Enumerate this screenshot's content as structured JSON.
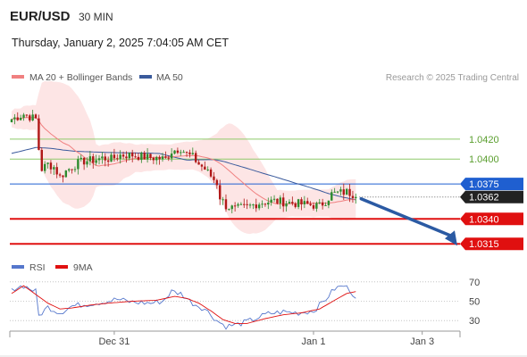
{
  "header": {
    "symbol": "EUR/USD",
    "timeframe": "30 MIN",
    "datetime": "Thursday, January 2, 2025 7:04:05 AM CET",
    "credit": "Research © 2025 Trading Central"
  },
  "legend": {
    "ma20": "MA 20 + Bollinger Bands",
    "ma50": "MA 50",
    "rsi": "RSI",
    "ma9": "9MA"
  },
  "colors": {
    "up_candle": "#2e8b2e",
    "down_candle": "#b01818",
    "ma20": "#f08080",
    "ma50": "#3a5a9c",
    "bollinger_fill": "#fde1e1",
    "green_level": "#8ec96a",
    "blue_level": "#1f5fd0",
    "red_level": "#e01010",
    "arrow": "#2b5aa3",
    "rsi": "#5577cc",
    "rsi_ma": "#e01010"
  },
  "chart_data": [
    {
      "type": "candlestick",
      "title": "",
      "x_ticks": [
        "Dec 31",
        "Jan 1",
        "Jan 3"
      ],
      "ylim": [
        1.03,
        1.047
      ],
      "n_bars": 147,
      "series": [
        {
          "name": "MA 20 + Bollinger Bands"
        },
        {
          "name": "MA 50"
        }
      ],
      "close_path": [
        {
          "bar": 0,
          "close": 1.044
        },
        {
          "bar": 4,
          "close": 1.0445
        },
        {
          "bar": 8,
          "close": 1.044
        },
        {
          "bar": 9,
          "close": 1.041
        },
        {
          "bar": 10,
          "close": 1.039
        },
        {
          "bar": 12,
          "close": 1.0395
        },
        {
          "bar": 14,
          "close": 1.0392
        },
        {
          "bar": 16,
          "close": 1.0382
        },
        {
          "bar": 18,
          "close": 1.0388
        },
        {
          "bar": 20,
          "close": 1.0392
        },
        {
          "bar": 22,
          "close": 1.0396
        },
        {
          "bar": 24,
          "close": 1.0398
        },
        {
          "bar": 27,
          "close": 1.0399
        },
        {
          "bar": 30,
          "close": 1.0401
        },
        {
          "bar": 33,
          "close": 1.04
        },
        {
          "bar": 36,
          "close": 1.0404
        },
        {
          "bar": 40,
          "close": 1.0404
        },
        {
          "bar": 44,
          "close": 1.0402
        },
        {
          "bar": 48,
          "close": 1.0401
        },
        {
          "bar": 51,
          "close": 1.04
        },
        {
          "bar": 53,
          "close": 1.0408
        },
        {
          "bar": 56,
          "close": 1.0411
        },
        {
          "bar": 58,
          "close": 1.0405
        },
        {
          "bar": 60,
          "close": 1.0402
        },
        {
          "bar": 62,
          "close": 1.0395
        },
        {
          "bar": 64,
          "close": 1.039
        },
        {
          "bar": 66,
          "close": 1.0383
        },
        {
          "bar": 68,
          "close": 1.0376
        },
        {
          "bar": 69,
          "close": 1.0362
        },
        {
          "bar": 71,
          "close": 1.0353
        },
        {
          "bar": 74,
          "close": 1.035
        },
        {
          "bar": 78,
          "close": 1.0352
        },
        {
          "bar": 82,
          "close": 1.0356
        },
        {
          "bar": 84,
          "close": 1.0357
        },
        {
          "bar": 87,
          "close": 1.0358
        },
        {
          "bar": 90,
          "close": 1.0357
        },
        {
          "bar": 93,
          "close": 1.0356
        },
        {
          "bar": 96,
          "close": 1.0355
        },
        {
          "bar": 99,
          "close": 1.0354
        },
        {
          "bar": 102,
          "close": 1.0353
        },
        {
          "bar": 104,
          "close": 1.0358
        },
        {
          "bar": 106,
          "close": 1.0365
        },
        {
          "bar": 108,
          "close": 1.0366
        },
        {
          "bar": 111,
          "close": 1.0367
        },
        {
          "bar": 113,
          "close": 1.0365
        },
        {
          "bar": 114,
          "close": 1.0362
        }
      ],
      "levels": [
        {
          "label": "1.0420",
          "value": 1.042,
          "kind": "green"
        },
        {
          "label": "1.0400",
          "value": 1.04,
          "kind": "green"
        },
        {
          "label": "1.0375",
          "value": 1.0375,
          "kind": "blue"
        },
        {
          "label": "1.0362",
          "value": 1.0362,
          "kind": "last"
        },
        {
          "label": "1.0340",
          "value": 1.034,
          "kind": "red"
        },
        {
          "label": "1.0315",
          "value": 1.0315,
          "kind": "red"
        }
      ],
      "projection": {
        "from": 1.0362,
        "to": 1.0315,
        "direction": "down"
      }
    },
    {
      "type": "line",
      "title": "",
      "series_names": [
        "RSI",
        "9MA"
      ],
      "ylim": [
        20,
        80
      ],
      "y_ticks": [
        70,
        50,
        30
      ],
      "rsi": [
        {
          "bar": 0,
          "v": 63
        },
        {
          "bar": 4,
          "v": 66
        },
        {
          "bar": 8,
          "v": 60
        },
        {
          "bar": 9,
          "v": 35
        },
        {
          "bar": 12,
          "v": 44
        },
        {
          "bar": 16,
          "v": 38
        },
        {
          "bar": 20,
          "v": 45
        },
        {
          "bar": 25,
          "v": 47
        },
        {
          "bar": 30,
          "v": 49
        },
        {
          "bar": 35,
          "v": 52
        },
        {
          "bar": 40,
          "v": 49
        },
        {
          "bar": 46,
          "v": 48
        },
        {
          "bar": 50,
          "v": 50
        },
        {
          "bar": 53,
          "v": 60
        },
        {
          "bar": 56,
          "v": 58
        },
        {
          "bar": 60,
          "v": 48
        },
        {
          "bar": 64,
          "v": 42
        },
        {
          "bar": 68,
          "v": 30
        },
        {
          "bar": 71,
          "v": 24
        },
        {
          "bar": 75,
          "v": 26
        },
        {
          "bar": 80,
          "v": 31
        },
        {
          "bar": 85,
          "v": 37
        },
        {
          "bar": 90,
          "v": 39
        },
        {
          "bar": 95,
          "v": 38
        },
        {
          "bar": 100,
          "v": 40
        },
        {
          "bar": 104,
          "v": 52
        },
        {
          "bar": 107,
          "v": 63
        },
        {
          "bar": 110,
          "v": 66
        },
        {
          "bar": 112,
          "v": 62
        },
        {
          "bar": 114,
          "v": 53
        }
      ],
      "rsi_ma": [
        {
          "bar": 0,
          "v": 58
        },
        {
          "bar": 4,
          "v": 66
        },
        {
          "bar": 8,
          "v": 57
        },
        {
          "bar": 12,
          "v": 48
        },
        {
          "bar": 16,
          "v": 42
        },
        {
          "bar": 20,
          "v": 43
        },
        {
          "bar": 26,
          "v": 46
        },
        {
          "bar": 32,
          "v": 48
        },
        {
          "bar": 40,
          "v": 50
        },
        {
          "bar": 48,
          "v": 51
        },
        {
          "bar": 54,
          "v": 55
        },
        {
          "bar": 58,
          "v": 53
        },
        {
          "bar": 62,
          "v": 48
        },
        {
          "bar": 66,
          "v": 40
        },
        {
          "bar": 70,
          "v": 31
        },
        {
          "bar": 74,
          "v": 27
        },
        {
          "bar": 78,
          "v": 27
        },
        {
          "bar": 84,
          "v": 32
        },
        {
          "bar": 90,
          "v": 36
        },
        {
          "bar": 96,
          "v": 38
        },
        {
          "bar": 102,
          "v": 42
        },
        {
          "bar": 107,
          "v": 51
        },
        {
          "bar": 111,
          "v": 58
        },
        {
          "bar": 114,
          "v": 60
        }
      ]
    }
  ]
}
